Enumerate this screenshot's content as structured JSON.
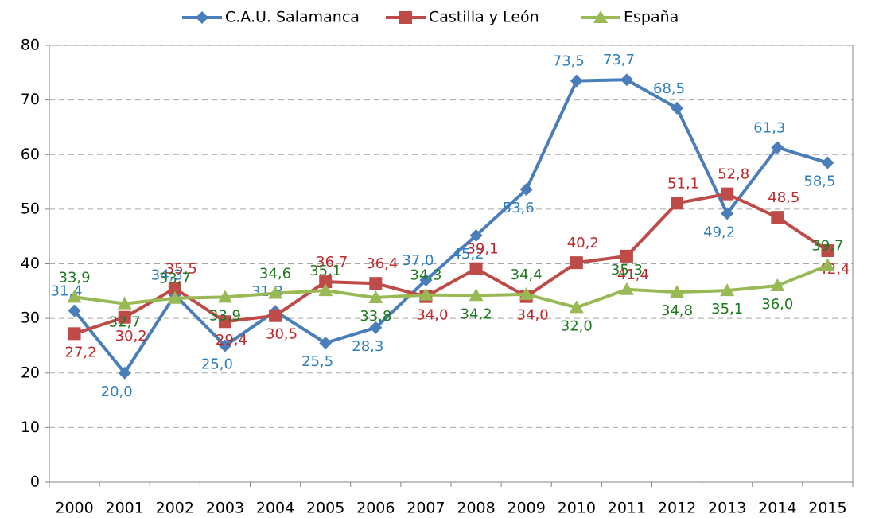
{
  "chart_data": {
    "type": "line",
    "categories": [
      "2000",
      "2001",
      "2002",
      "2003",
      "2004",
      "2005",
      "2006",
      "2007",
      "2008",
      "2009",
      "2010",
      "2011",
      "2012",
      "2013",
      "2014",
      "2015"
    ],
    "series": [
      {
        "name": "C.A.U. Salamanca",
        "color": "#4a7ebb",
        "label_color": "#2e7fc0",
        "marker": "diamond",
        "values": [
          31.4,
          20.0,
          34.3,
          25.0,
          31.3,
          25.5,
          28.3,
          37.0,
          45.2,
          53.6,
          73.5,
          73.7,
          68.5,
          49.2,
          61.3,
          58.5
        ],
        "value_labels": [
          "31,4",
          "20,0",
          "34,3",
          "25,0",
          "31,3",
          "25,5",
          "28,3",
          "37,0",
          "45,2",
          "53,6",
          "73,5",
          "73,7",
          "68,5",
          "49,2",
          "61,3",
          "58,5"
        ]
      },
      {
        "name": "Castilla y León",
        "color": "#be4b48",
        "label_color": "#c0282a",
        "marker": "square",
        "values": [
          27.2,
          30.2,
          35.5,
          29.4,
          30.5,
          36.7,
          36.4,
          34.0,
          39.1,
          34.0,
          40.2,
          41.4,
          51.1,
          52.8,
          48.5,
          42.4
        ],
        "value_labels": [
          "27,2",
          "30,2",
          "35,5",
          "29,4",
          "30,5",
          "36,7",
          "36,4",
          "34,0",
          "39,1",
          "34,0",
          "40,2",
          "41,4",
          "51,1",
          "52,8",
          "48,5",
          "42,4"
        ]
      },
      {
        "name": "España",
        "color": "#98b954",
        "label_color": "#1e7a1e",
        "marker": "triangle",
        "values": [
          33.9,
          32.7,
          33.7,
          33.9,
          34.6,
          35.1,
          33.8,
          34.3,
          34.2,
          34.4,
          32.0,
          35.3,
          34.8,
          35.1,
          36.0,
          39.7
        ],
        "value_labels": [
          "33,9",
          "32,7",
          "33,7",
          "33,9",
          "34,6",
          "35,1",
          "33,8",
          "34,3",
          "34,2",
          "34,4",
          "32,0",
          "35,3",
          "34,8",
          "35,1",
          "36,0",
          "39,7"
        ]
      }
    ],
    "ylim": [
      0,
      80
    ],
    "yticks": [
      0,
      10,
      20,
      30,
      40,
      50,
      60,
      70,
      80
    ],
    "grid": true,
    "legend": "top"
  }
}
